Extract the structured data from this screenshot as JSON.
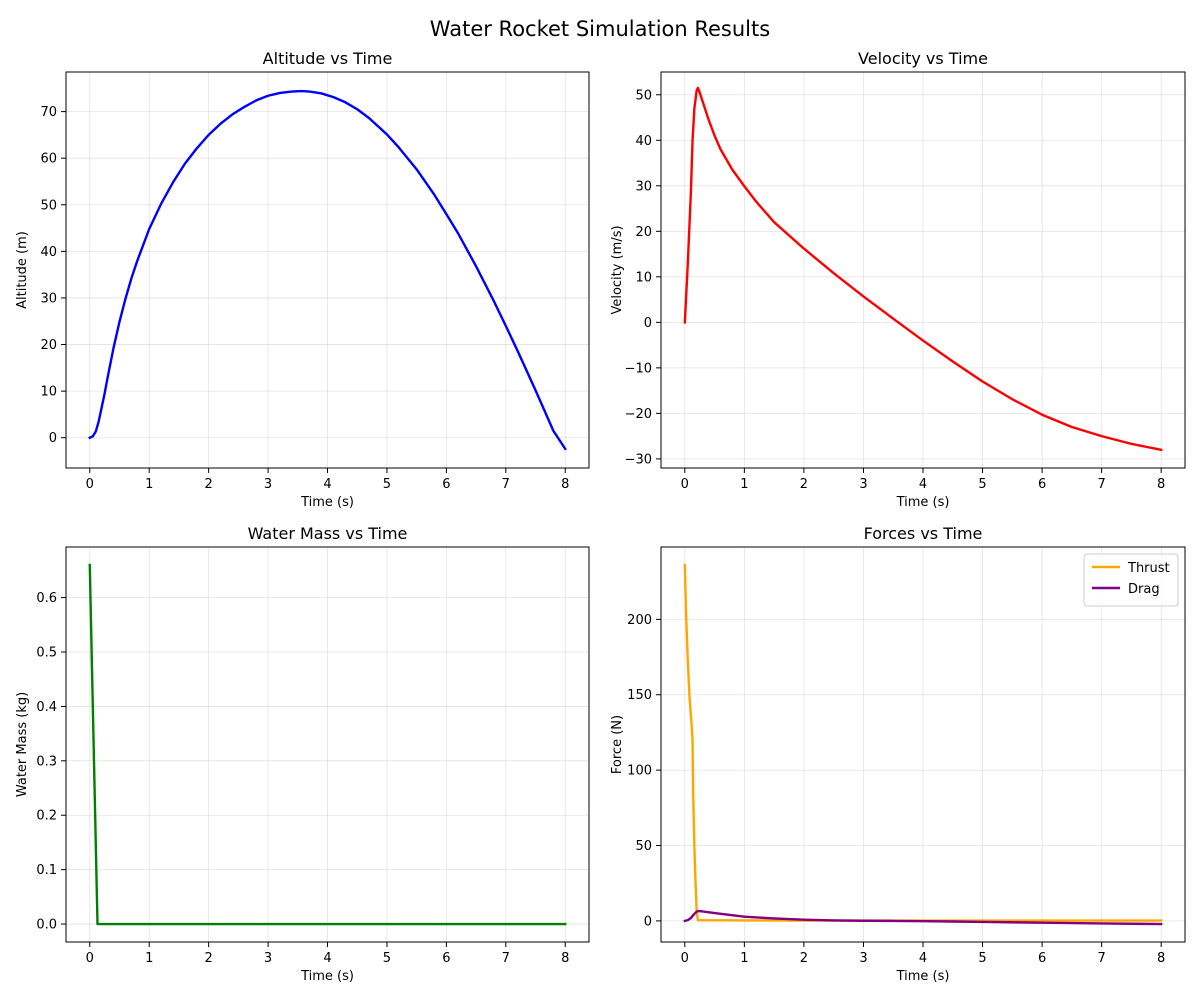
{
  "figure": {
    "title": "Water Rocket Simulation Results"
  },
  "chart_data": [
    {
      "id": "altitude",
      "type": "line",
      "title": "Altitude vs Time",
      "xlabel": "Time (s)",
      "ylabel": "Altitude (m)",
      "xlim": [
        -0.4,
        8.4
      ],
      "ylim": [
        -6.5,
        78.5
      ],
      "xticks": [
        0,
        1,
        2,
        3,
        4,
        5,
        6,
        7,
        8
      ],
      "yticks": [
        0,
        10,
        20,
        30,
        40,
        50,
        60,
        70
      ],
      "grid": true,
      "series": [
        {
          "color": "#0000ff",
          "x": [
            0,
            0.05,
            0.1,
            0.15,
            0.2,
            0.25,
            0.3,
            0.4,
            0.5,
            0.6,
            0.7,
            0.8,
            1.0,
            1.2,
            1.4,
            1.6,
            1.8,
            2.0,
            2.2,
            2.4,
            2.6,
            2.8,
            3.0,
            3.2,
            3.4,
            3.55,
            3.7,
            3.9,
            4.1,
            4.3,
            4.5,
            4.7,
            5.0,
            5.2,
            5.5,
            5.8,
            6.0,
            6.2,
            6.5,
            6.8,
            7.0,
            7.2,
            7.5,
            7.8,
            8.0
          ],
          "y": [
            0,
            0.3,
            1.3,
            3.5,
            6.5,
            9.5,
            12.9,
            19.3,
            24.9,
            29.8,
            34.2,
            38.0,
            44.8,
            50.2,
            54.8,
            58.8,
            62.1,
            65.0,
            67.4,
            69.4,
            71.0,
            72.4,
            73.4,
            74.0,
            74.3,
            74.4,
            74.3,
            73.9,
            73.1,
            72.0,
            70.5,
            68.6,
            65.1,
            62.3,
            57.6,
            52.1,
            48.0,
            43.8,
            36.8,
            29.3,
            24.0,
            18.6,
            10.2,
            1.5,
            -2.4
          ]
        }
      ]
    },
    {
      "id": "velocity",
      "type": "line",
      "title": "Velocity vs Time",
      "xlabel": "Time (s)",
      "ylabel": "Velocity (m/s)",
      "xlim": [
        -0.4,
        8.4
      ],
      "ylim": [
        -32,
        55
      ],
      "xticks": [
        0,
        1,
        2,
        3,
        4,
        5,
        6,
        7,
        8
      ],
      "yticks": [
        -30,
        -20,
        -10,
        0,
        10,
        20,
        30,
        40,
        50
      ],
      "grid": true,
      "series": [
        {
          "color": "#ff0000",
          "x": [
            0,
            0.05,
            0.1,
            0.13,
            0.16,
            0.2,
            0.22,
            0.25,
            0.3,
            0.4,
            0.5,
            0.6,
            0.8,
            1.0,
            1.2,
            1.5,
            2.0,
            2.5,
            3.0,
            3.5,
            4.0,
            4.5,
            5.0,
            5.5,
            6.0,
            6.5,
            7.0,
            7.5,
            8.0
          ],
          "y": [
            0,
            13,
            28,
            40,
            47,
            51,
            51.5,
            50.5,
            48.5,
            44.5,
            41.0,
            38.0,
            33.5,
            29.9,
            26.5,
            22.0,
            16.2,
            10.8,
            5.7,
            0.8,
            -4.0,
            -8.6,
            -13.0,
            -16.9,
            -20.3,
            -23.0,
            -25.0,
            -26.7,
            -28.0
          ]
        }
      ]
    },
    {
      "id": "water-mass",
      "type": "line",
      "title": "Water Mass vs Time",
      "xlabel": "Time (s)",
      "ylabel": "Water Mass (kg)",
      "xlim": [
        -0.4,
        8.4
      ],
      "ylim": [
        -0.033,
        0.693
      ],
      "xticks": [
        0,
        1,
        2,
        3,
        4,
        5,
        6,
        7,
        8
      ],
      "yticks": [
        0.0,
        0.1,
        0.2,
        0.3,
        0.4,
        0.5,
        0.6
      ],
      "tick_labels_y": [
        "0.0",
        "0.1",
        "0.2",
        "0.3",
        "0.4",
        "0.5",
        "0.6"
      ],
      "grid": true,
      "series": [
        {
          "color": "#008000",
          "x": [
            0,
            0.13,
            8
          ],
          "y": [
            0.66,
            0.0,
            0.0
          ]
        }
      ]
    },
    {
      "id": "forces",
      "type": "line",
      "title": "Forces vs Time",
      "xlabel": "Time (s)",
      "ylabel": "Force (N)",
      "xlim": [
        -0.4,
        8.4
      ],
      "ylim": [
        -14,
        248
      ],
      "xticks": [
        0,
        1,
        2,
        3,
        4,
        5,
        6,
        7,
        8
      ],
      "yticks": [
        0,
        50,
        100,
        150,
        200
      ],
      "grid": true,
      "legend": "top-right",
      "series": [
        {
          "name": "Thrust",
          "color": "#ffa500",
          "x": [
            0,
            0.02,
            0.05,
            0.08,
            0.11,
            0.13,
            0.14,
            0.16,
            0.18,
            0.2,
            0.22,
            1.0,
            2.0,
            4.0,
            6.0,
            8.0
          ],
          "y": [
            236,
            205,
            172,
            148,
            132,
            120,
            85,
            50,
            25,
            6,
            0.5,
            0.3,
            0.2,
            0.2,
            0.2,
            0.2
          ]
        },
        {
          "name": "Drag",
          "color": "#800080",
          "x": [
            0,
            0.05,
            0.1,
            0.15,
            0.2,
            0.25,
            0.5,
            1.0,
            1.5,
            2.0,
            2.5,
            3.0,
            3.5,
            4.0,
            4.5,
            5.0,
            6.0,
            7.0,
            8.0
          ],
          "y": [
            0,
            0.5,
            1.8,
            4.2,
            6.3,
            6.5,
            5.2,
            2.8,
            1.6,
            0.8,
            0.3,
            0.1,
            0,
            -0.2,
            -0.4,
            -0.7,
            -1.2,
            -1.7,
            -2.1
          ]
        }
      ]
    }
  ]
}
